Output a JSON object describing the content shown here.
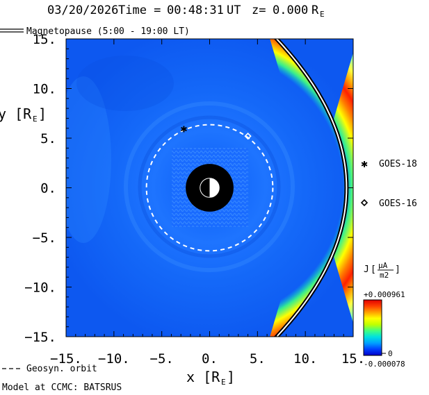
{
  "title": {
    "date": "03/20/2026",
    "time_label": "Time =",
    "time": "00:48:31",
    "time_unit": "UT",
    "z_label": "z=",
    "z_value": "0.000",
    "z_unit": "R",
    "z_unit_sub": "E"
  },
  "legend": {
    "magnetopause": "Magnetopause (5:00 - 19:00 LT)",
    "geosyn": "Geosyn. orbit",
    "model": "Model at CCMC: BATSRUS"
  },
  "satellites": [
    {
      "name": "GOES-18",
      "marker": "asterisk",
      "x": -2.7,
      "y": 6.0
    },
    {
      "name": "GOES-16",
      "marker": "diamond",
      "x": 4.0,
      "y": 5.2
    }
  ],
  "colorbar": {
    "label": "J",
    "unit_num": "µA",
    "unit_den": "m2",
    "max_label": "+0.000961",
    "zero_label": "0",
    "min_label": "-0.000078",
    "colors": [
      "#0000c8",
      "#0040ff",
      "#00a0ff",
      "#00e0e0",
      "#40ff80",
      "#c0ff00",
      "#ffff00",
      "#ffa000",
      "#ff4000",
      "#e00000"
    ]
  },
  "chart_data": {
    "type": "heatmap",
    "xlabel": "x [R",
    "xlabel_sub": "E",
    "ylabel": "y [R",
    "ylabel_sub": "E",
    "xlim": [
      -15,
      15
    ],
    "ylim": [
      -15,
      15
    ],
    "xticks": [
      -15,
      -10,
      -5,
      0,
      5,
      10,
      15
    ],
    "yticks": [
      -15,
      -10,
      -5,
      0,
      5,
      10,
      15
    ],
    "xtick_labels": [
      "-15.",
      "-10.",
      "-5.",
      "0.",
      "5.",
      "10.",
      "15."
    ],
    "ytick_labels": [
      "-15.",
      "-10.",
      "-5.",
      "0.",
      "5.",
      "10.",
      "15."
    ],
    "geosyn_radius": 6.6,
    "inner_boundary_radius": 2.5,
    "earth_radius": 1.0,
    "magnetopause": {
      "standoff_x": 14.3,
      "flank_x_at_y15": 7.0
    },
    "background_color": "#0050f0"
  }
}
